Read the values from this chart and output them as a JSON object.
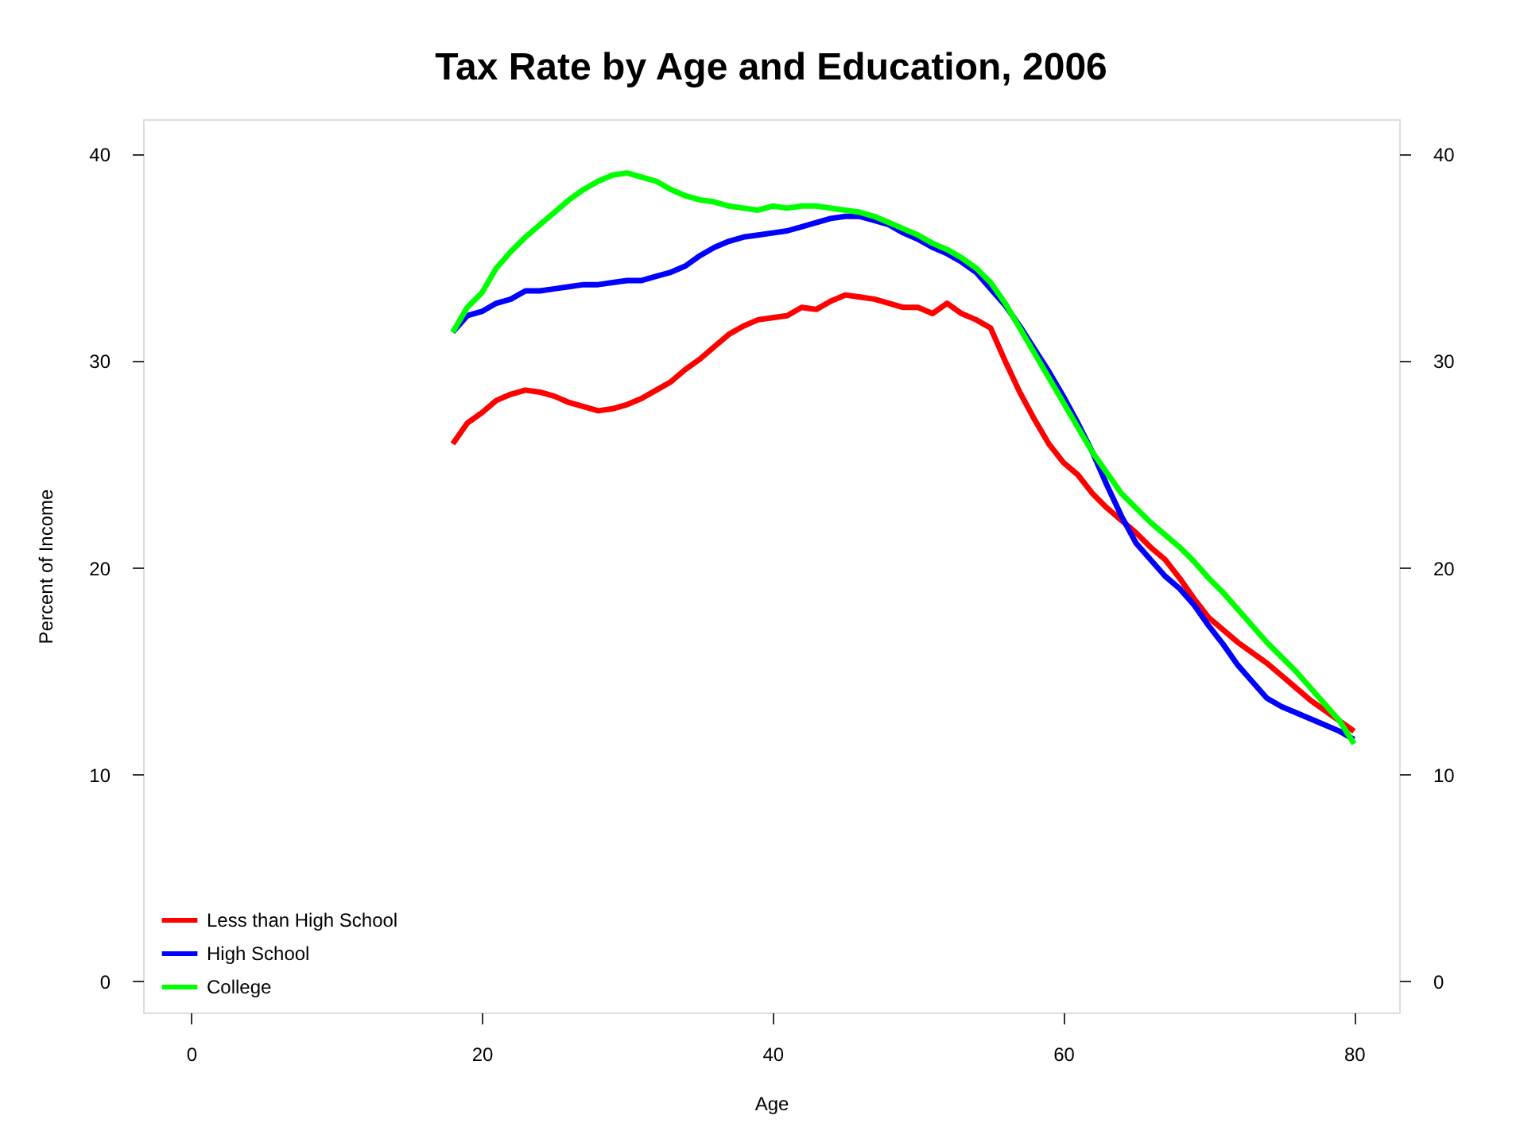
{
  "chart_data": {
    "type": "line",
    "title": "Tax Rate by Age and Education, 2006",
    "xlabel": "Age",
    "ylabel": "Percent of Income",
    "x": [
      18,
      19,
      20,
      21,
      22,
      23,
      24,
      25,
      26,
      27,
      28,
      29,
      30,
      31,
      32,
      33,
      34,
      35,
      36,
      37,
      38,
      39,
      40,
      41,
      42,
      43,
      44,
      45,
      46,
      47,
      48,
      49,
      50,
      51,
      52,
      53,
      54,
      55,
      56,
      57,
      58,
      59,
      60,
      61,
      62,
      63,
      64,
      65,
      66,
      67,
      68,
      69,
      70,
      71,
      72,
      73,
      74,
      75,
      76,
      77,
      78,
      79,
      80
    ],
    "series": [
      {
        "name": "Less than High School",
        "color": "#ff0000",
        "values": [
          26.0,
          27.0,
          27.5,
          28.1,
          28.4,
          28.6,
          28.5,
          28.3,
          28.0,
          27.8,
          27.6,
          27.7,
          27.9,
          28.2,
          28.6,
          29.0,
          29.6,
          30.1,
          30.7,
          31.3,
          31.7,
          32.0,
          32.1,
          32.2,
          32.6,
          32.5,
          32.9,
          33.2,
          33.1,
          33.0,
          32.8,
          32.6,
          32.6,
          32.3,
          32.8,
          32.3,
          32.0,
          31.6,
          30.0,
          28.5,
          27.2,
          26.0,
          25.1,
          24.5,
          23.6,
          22.9,
          22.3,
          21.7,
          21.0,
          20.4,
          19.5,
          18.5,
          17.6,
          17.0,
          16.4,
          15.9,
          15.4,
          14.8,
          14.2,
          13.6,
          13.1,
          12.6,
          12.1
        ]
      },
      {
        "name": "High School",
        "color": "#0000ff",
        "values": [
          31.4,
          32.2,
          32.4,
          32.8,
          33.0,
          33.4,
          33.4,
          33.5,
          33.6,
          33.7,
          33.7,
          33.8,
          33.9,
          33.9,
          34.1,
          34.3,
          34.6,
          35.1,
          35.5,
          35.8,
          36.0,
          36.1,
          36.2,
          36.3,
          36.5,
          36.7,
          36.9,
          37.0,
          37.0,
          36.8,
          36.6,
          36.2,
          35.9,
          35.5,
          35.2,
          34.8,
          34.3,
          33.5,
          32.7,
          31.7,
          30.6,
          29.5,
          28.3,
          27.0,
          25.6,
          24.0,
          22.5,
          21.2,
          20.4,
          19.6,
          19.0,
          18.2,
          17.2,
          16.3,
          15.3,
          14.5,
          13.7,
          13.3,
          13.0,
          12.7,
          12.4,
          12.1,
          11.7
        ]
      },
      {
        "name": "College",
        "color": "#00ff00",
        "values": [
          31.4,
          32.6,
          33.3,
          34.5,
          35.3,
          36.0,
          36.6,
          37.2,
          37.8,
          38.3,
          38.7,
          39.0,
          39.1,
          38.9,
          38.7,
          38.3,
          38.0,
          37.8,
          37.7,
          37.5,
          37.4,
          37.3,
          37.5,
          37.4,
          37.5,
          37.5,
          37.4,
          37.3,
          37.2,
          37.0,
          36.7,
          36.4,
          36.1,
          35.7,
          35.4,
          35.0,
          34.5,
          33.8,
          32.8,
          31.6,
          30.4,
          29.2,
          28.0,
          26.8,
          25.6,
          24.6,
          23.6,
          22.9,
          22.2,
          21.6,
          21.0,
          20.3,
          19.5,
          18.8,
          18.0,
          17.2,
          16.4,
          15.7,
          15.0,
          14.2,
          13.4,
          12.6,
          11.5
        ]
      }
    ],
    "xlim": [
      -3.3,
      83.1
    ],
    "xticks": [
      0,
      20,
      40,
      60,
      80
    ],
    "ylim": [
      -1.5,
      41.7
    ],
    "yticks": [
      0,
      10,
      20,
      30,
      40
    ],
    "y2lim": [
      -1.5,
      41.7
    ],
    "y2ticks": [
      0,
      10,
      20,
      30,
      40
    ],
    "legend": "bottom left",
    "grid": false,
    "marker": "none",
    "line_style": "solid"
  }
}
